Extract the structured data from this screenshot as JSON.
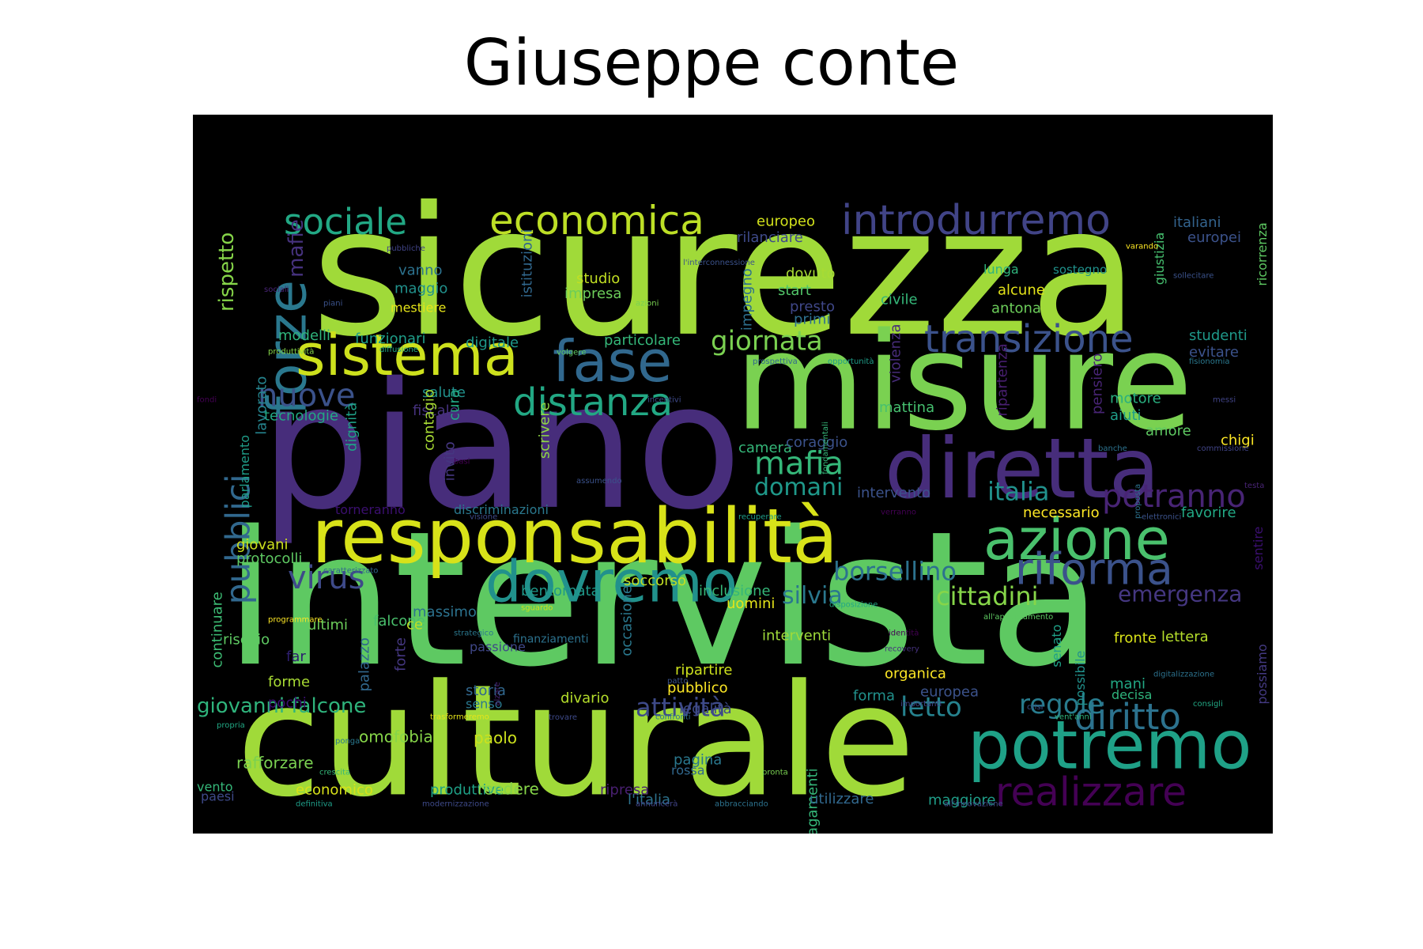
{
  "title": "Giuseppe conte",
  "words": [
    {
      "text": "intervista",
      "color": "#5ec962"
    },
    {
      "text": "sicurezza",
      "color": "#a0da39"
    },
    {
      "text": "piano",
      "color": "#472d7b"
    },
    {
      "text": "culturale",
      "color": "#a0da39"
    },
    {
      "text": "misure",
      "color": "#7ad151"
    },
    {
      "text": "responsabilità",
      "color": "#d8e219"
    },
    {
      "text": "diretta",
      "color": "#472d7b"
    },
    {
      "text": "potremo",
      "color": "#1fa187"
    },
    {
      "text": "forze",
      "color": "#2a788e"
    },
    {
      "text": "sistema",
      "color": "#cde11d"
    },
    {
      "text": "fase",
      "color": "#31688e"
    },
    {
      "text": "dovremo",
      "color": "#21918c"
    },
    {
      "text": "azione",
      "color": "#4ac16d"
    },
    {
      "text": "realizzare",
      "color": "#440154"
    },
    {
      "text": "riforma",
      "color": "#3b528b"
    },
    {
      "text": "distanza",
      "color": "#22a884"
    },
    {
      "text": "introdurremo",
      "color": "#414487"
    },
    {
      "text": "transizione",
      "color": "#3b528b"
    },
    {
      "text": "economica",
      "color": "#bddf26"
    },
    {
      "text": "sociale",
      "color": "#22a884"
    },
    {
      "text": "pubblici",
      "color": "#31688e"
    },
    {
      "text": "diritto",
      "color": "#2c728e"
    },
    {
      "text": "potranno",
      "color": "#482475"
    },
    {
      "text": "virus",
      "color": "#3e4a89"
    },
    {
      "text": "mafia",
      "color": "#35b779"
    },
    {
      "text": "nuove",
      "color": "#3b528b"
    },
    {
      "text": "giornata",
      "color": "#7ad151"
    },
    {
      "text": "borsellino",
      "color": "#2c728e"
    },
    {
      "text": "cittadini",
      "color": "#86d549"
    },
    {
      "text": "italia",
      "color": "#21918c"
    },
    {
      "text": "domani",
      "color": "#1f998a"
    },
    {
      "text": "silvia",
      "color": "#2a788e"
    },
    {
      "text": "emergenza",
      "color": "#453781"
    },
    {
      "text": "regole",
      "color": "#287c8e"
    },
    {
      "text": "letto",
      "color": "#26828e"
    },
    {
      "text": "attività",
      "color": "#3e4a89"
    },
    {
      "text": "giovanni falcone",
      "color": "#2fb47c"
    },
    {
      "text": "rispetto",
      "color": "#86d549"
    },
    {
      "text": "mafie",
      "color": "#46327e"
    },
    {
      "text": "studio",
      "color": "#c2df23"
    },
    {
      "text": "impresa",
      "color": "#6ccd5a"
    },
    {
      "text": "europeo",
      "color": "#d2e21b"
    },
    {
      "text": "italiani",
      "color": "#33638d"
    },
    {
      "text": "europei",
      "color": "#3b528b"
    },
    {
      "text": "rilanciare",
      "color": "#3e4a89"
    },
    {
      "text": "vanno",
      "color": "#2c728e"
    },
    {
      "text": "maggio",
      "color": "#21918c"
    },
    {
      "text": "mestiere",
      "color": "#e5e419"
    },
    {
      "text": "dovuto",
      "color": "#a8db34"
    },
    {
      "text": "start",
      "color": "#52c569"
    },
    {
      "text": "presto",
      "color": "#3f4788"
    },
    {
      "text": "primi",
      "color": "#2d708e"
    },
    {
      "text": "civile",
      "color": "#35b779"
    },
    {
      "text": "alcune",
      "color": "#e5e419"
    },
    {
      "text": "antona",
      "color": "#6ccd5a"
    },
    {
      "text": "lunga",
      "color": "#2fb47c"
    },
    {
      "text": "sostegno",
      "color": "#20928c"
    },
    {
      "text": "giustizia",
      "color": "#46c06f"
    },
    {
      "text": "ricorrenza",
      "color": "#5ec962"
    },
    {
      "text": "studenti",
      "color": "#1f998a"
    },
    {
      "text": "evitare",
      "color": "#3b528b"
    },
    {
      "text": "istituzioni",
      "color": "#31688e"
    },
    {
      "text": "impegno",
      "color": "#2d708e"
    },
    {
      "text": "modelli",
      "color": "#2fb47c"
    },
    {
      "text": "funzionari",
      "color": "#1f9e89"
    },
    {
      "text": "digitale",
      "color": "#1f998a"
    },
    {
      "text": "particolare",
      "color": "#35b779"
    },
    {
      "text": "salute",
      "color": "#21918c"
    },
    {
      "text": "fiscale",
      "color": "#46327e"
    },
    {
      "text": "tecnologie",
      "color": "#22a884"
    },
    {
      "text": "lavorato",
      "color": "#25848e"
    },
    {
      "text": "parlamento",
      "color": "#1f9e89"
    },
    {
      "text": "dignità",
      "color": "#1fa187"
    },
    {
      "text": "contagio",
      "color": "#a8db34"
    },
    {
      "text": "cura",
      "color": "#22a884"
    },
    {
      "text": "invito",
      "color": "#453781"
    },
    {
      "text": "scrivere",
      "color": "#8fd744"
    },
    {
      "text": "camera",
      "color": "#35b779"
    },
    {
      "text": "coraggio",
      "color": "#3b528b"
    },
    {
      "text": "violenza",
      "color": "#472c7a"
    },
    {
      "text": "mattina",
      "color": "#46c06f"
    },
    {
      "text": "ripartenza",
      "color": "#481f70"
    },
    {
      "text": "pensiero",
      "color": "#482475"
    },
    {
      "text": "motore",
      "color": "#29af7f"
    },
    {
      "text": "aiuti",
      "color": "#1f9e89"
    },
    {
      "text": "amore",
      "color": "#5ec962"
    },
    {
      "text": "chigi",
      "color": "#fde725"
    },
    {
      "text": "intervento",
      "color": "#3b528b"
    },
    {
      "text": "torneranno",
      "color": "#3b0f70"
    },
    {
      "text": "discriminazioni",
      "color": "#2a788e"
    },
    {
      "text": "necessario",
      "color": "#fde725"
    },
    {
      "text": "favorire",
      "color": "#22a884"
    },
    {
      "text": "sentire",
      "color": "#3b0f70"
    },
    {
      "text": "giovani",
      "color": "#cde11d"
    },
    {
      "text": "protocolli",
      "color": "#5ec962"
    },
    {
      "text": "bentornata",
      "color": "#1f998a"
    },
    {
      "text": "soccorso",
      "color": "#c2df23"
    },
    {
      "text": "inclusione",
      "color": "#35b779"
    },
    {
      "text": "uomini",
      "color": "#e5e419"
    },
    {
      "text": "massimo",
      "color": "#2c728e"
    },
    {
      "text": "ultimi",
      "color": "#6ccd5a"
    },
    {
      "text": "falcone",
      "color": "#4ac16d"
    },
    {
      "text": "ce",
      "color": "#bddf26"
    },
    {
      "text": "rischio",
      "color": "#5ec962"
    },
    {
      "text": "continuare",
      "color": "#3dbc74"
    },
    {
      "text": "far",
      "color": "#2d1e6e"
    },
    {
      "text": "forme",
      "color": "#a8db34"
    },
    {
      "text": "pochi",
      "color": "#3b0f70"
    },
    {
      "text": "palazzo",
      "color": "#31688e"
    },
    {
      "text": "forte",
      "color": "#453781"
    },
    {
      "text": "occasione",
      "color": "#2a788e"
    },
    {
      "text": "passione",
      "color": "#3f4788"
    },
    {
      "text": "storia",
      "color": "#31688e"
    },
    {
      "text": "senso",
      "color": "#2a788e"
    },
    {
      "text": "divario",
      "color": "#b5de2b"
    },
    {
      "text": "finanziamenti",
      "color": "#2c728e"
    },
    {
      "text": "interventi",
      "color": "#9fda3a"
    },
    {
      "text": "fronte",
      "color": "#d8e219"
    },
    {
      "text": "lettera",
      "color": "#b5de2b"
    },
    {
      "text": "ripartire",
      "color": "#cde11d"
    },
    {
      "text": "pubblico",
      "color": "#fde725"
    },
    {
      "text": "legalità",
      "color": "#3e4a89"
    },
    {
      "text": "forma",
      "color": "#21918c"
    },
    {
      "text": "europea",
      "color": "#3b528b"
    },
    {
      "text": "organica",
      "color": "#fde725"
    },
    {
      "text": "mani",
      "color": "#22a884"
    },
    {
      "text": "decisa",
      "color": "#2fb47c"
    },
    {
      "text": "senato",
      "color": "#1fa187"
    },
    {
      "text": "possibile",
      "color": "#21918c"
    },
    {
      "text": "possiamo",
      "color": "#443a83"
    },
    {
      "text": "omofobia",
      "color": "#86d549"
    },
    {
      "text": "paolo",
      "color": "#cde11d"
    },
    {
      "text": "pagamenti",
      "color": "#35b779"
    },
    {
      "text": "rafforzare",
      "color": "#7ad151"
    },
    {
      "text": "pagina",
      "color": "#2a788e"
    },
    {
      "text": "rossa",
      "color": "#31688e"
    },
    {
      "text": "vento",
      "color": "#35b779"
    },
    {
      "text": "paesi",
      "color": "#3e4a89"
    },
    {
      "text": "economico",
      "color": "#d8e219"
    },
    {
      "text": "produttive",
      "color": "#1fa187"
    },
    {
      "text": "rendere",
      "color": "#86d549"
    },
    {
      "text": "ripresa",
      "color": "#481f70"
    },
    {
      "text": "l'italia",
      "color": "#2c728e"
    },
    {
      "text": "utilizzare",
      "color": "#31688e"
    },
    {
      "text": "maggiore",
      "color": "#1f9e89"
    },
    {
      "text": "pubbliche",
      "color": "#414487"
    },
    {
      "text": "l'interconnessione",
      "color": "#3b528b"
    },
    {
      "text": "varando",
      "color": "#fde725"
    },
    {
      "text": "sollecitare",
      "color": "#3b528b"
    },
    {
      "text": "sociali",
      "color": "#482475"
    },
    {
      "text": "piani",
      "color": "#3b528b"
    },
    {
      "text": "azioni",
      "color": "#7ad151"
    },
    {
      "text": "produttività",
      "color": "#86d549"
    },
    {
      "text": "diffusione",
      "color": "#22a884"
    },
    {
      "text": "volgere",
      "color": "#5ec962"
    },
    {
      "text": "prospettiva",
      "color": "#31688e"
    },
    {
      "text": "opportunità",
      "color": "#1f9e89"
    },
    {
      "text": "fisionomia",
      "color": "#2a788e"
    },
    {
      "text": "fondi",
      "color": "#440154"
    },
    {
      "text": "incentivi",
      "color": "#3e4a89"
    },
    {
      "text": "fondamentali",
      "color": "#35b779"
    },
    {
      "text": "messi",
      "color": "#414487"
    },
    {
      "text": "basi",
      "color": "#440154"
    },
    {
      "text": "assumendo",
      "color": "#3b528b"
    },
    {
      "text": "banche",
      "color": "#2c728e"
    },
    {
      "text": "commissione",
      "color": "#414487"
    },
    {
      "text": "proposta",
      "color": "#2c728e"
    },
    {
      "text": "testa",
      "color": "#482475"
    },
    {
      "text": "visione",
      "color": "#3e4a89"
    },
    {
      "text": "recuperare",
      "color": "#1f9e89"
    },
    {
      "text": "verranno",
      "color": "#440154"
    },
    {
      "text": "elettronici",
      "color": "#3b528b"
    },
    {
      "text": "caratterizzato",
      "color": "#31688e"
    },
    {
      "text": "sguardo",
      "color": "#cde11d"
    },
    {
      "text": "disposizione",
      "color": "#22a884"
    },
    {
      "text": "all'appuntamento",
      "color": "#5ec962"
    },
    {
      "text": "programmare",
      "color": "#fde725"
    },
    {
      "text": "strategico",
      "color": "#2a788e"
    },
    {
      "text": "identità",
      "color": "#440154"
    },
    {
      "text": "alzare",
      "color": "#482475"
    },
    {
      "text": "recovery",
      "color": "#46327e"
    },
    {
      "text": "digitalizzazione",
      "color": "#2c728e"
    },
    {
      "text": "patto",
      "color": "#3b528b"
    },
    {
      "text": "importanti",
      "color": "#414487"
    },
    {
      "text": "trovare",
      "color": "#3e4a89"
    },
    {
      "text": "confronti",
      "color": "#2c728e"
    },
    {
      "text": "consigli",
      "color": "#22a884"
    },
    {
      "text": "vent'anni",
      "color": "#2fb47c"
    },
    {
      "text": "crisi",
      "color": "#3b528b"
    },
    {
      "text": "trasformeremo",
      "color": "#e5e419"
    },
    {
      "text": "propria",
      "color": "#22a884"
    },
    {
      "text": "ponga",
      "color": "#2a788e"
    },
    {
      "text": "crescita",
      "color": "#35b779"
    },
    {
      "text": "pronta",
      "color": "#7ad151"
    },
    {
      "text": "definitiva",
      "color": "#1f9e89"
    },
    {
      "text": "modernizzazione",
      "color": "#3e4a89"
    },
    {
      "text": "annuncerà",
      "color": "#414487"
    },
    {
      "text": "abbracciando",
      "color": "#2c728e"
    },
    {
      "text": "all'innovazione",
      "color": "#3e4a89"
    }
  ]
}
